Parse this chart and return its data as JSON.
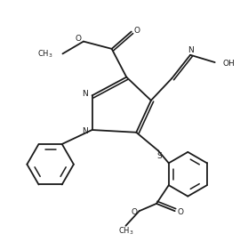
{
  "bg_color": "#ffffff",
  "line_color": "#1a1a1a",
  "line_width": 1.3,
  "figsize": [
    2.79,
    2.81
  ],
  "dpi": 100,
  "xlim": [
    0,
    10
  ],
  "ylim": [
    0,
    10
  ]
}
